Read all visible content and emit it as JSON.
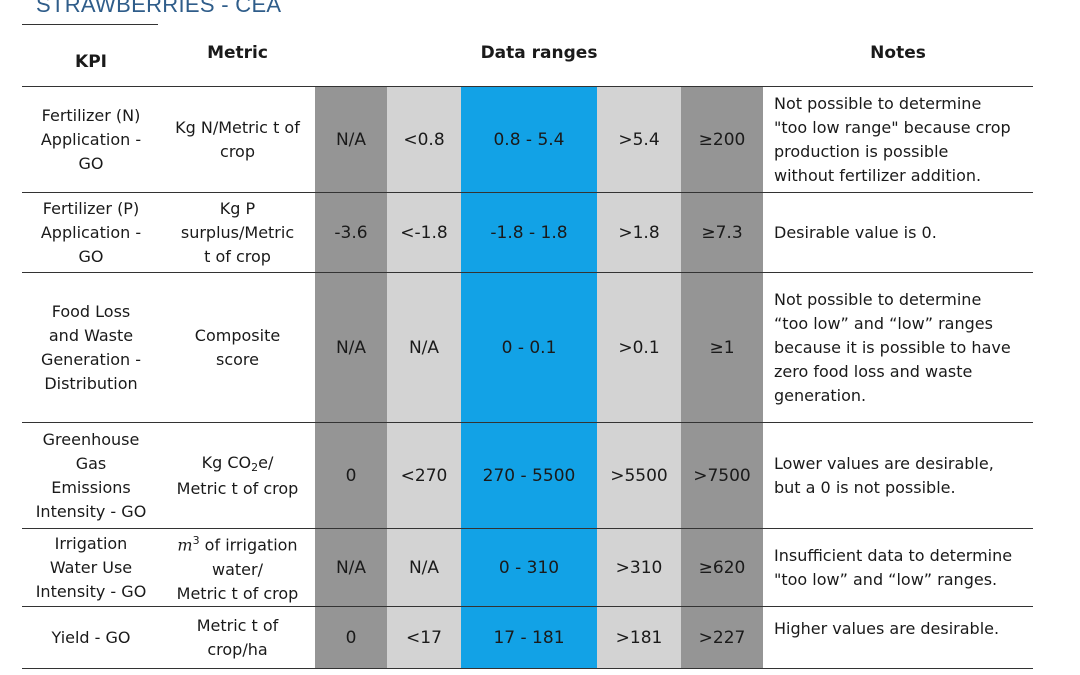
{
  "title": "STRAWBERRIES - CEA",
  "headers": {
    "kpi": "KPI",
    "metric": "Metric",
    "ranges": "Data ranges",
    "notes": "Notes"
  },
  "colors": {
    "too_low": "#959595",
    "low": "#d3d3d3",
    "desirable": "#12a2e6",
    "high": "#d3d3d3",
    "too_high": "#959595"
  },
  "rows": [
    {
      "kpi": [
        "Fertilizer (N)",
        "Application -",
        "GO"
      ],
      "metric": [
        "Kg N/Metric t of",
        "crop"
      ],
      "ranges": [
        "N/A",
        "<0.8",
        "0.8 - 5.4",
        ">5.4",
        "≥200"
      ],
      "notes": [
        "Not possible to determine",
        "\"too low range\" because crop",
        "production is possible",
        "without fertilizer addition."
      ]
    },
    {
      "kpi": [
        "Fertilizer (P)",
        "Application -",
        "GO"
      ],
      "metric": [
        "Kg P",
        "surplus/Metric",
        "t of crop"
      ],
      "ranges": [
        "-3.6",
        "<-1.8",
        "-1.8 - 1.8",
        ">1.8",
        "≥7.3"
      ],
      "notes": [
        "Desirable value is 0."
      ]
    },
    {
      "kpi": [
        "Food Loss",
        "and Waste",
        "Generation -",
        "Distribution"
      ],
      "metric": [
        "Composite",
        "score"
      ],
      "ranges": [
        "N/A",
        "N/A",
        "0 - 0.1",
        ">0.1",
        "≥1"
      ],
      "notes": [
        "Not possible to determine",
        "“too low” and “low” ranges",
        "because it is possible to have",
        "zero food loss and waste",
        "generation."
      ]
    },
    {
      "kpi": [
        "Greenhouse",
        "Gas",
        "Emissions",
        "Intensity - GO"
      ],
      "metric": [
        "Kg CO",
        "2",
        "e/",
        "Metric t of crop"
      ],
      "ranges": [
        "0",
        "<270",
        "270 - 5500",
        ">5500",
        ">7500"
      ],
      "notes": [
        "Lower values are desirable,",
        "but a 0 is not possible."
      ]
    },
    {
      "kpi": [
        "Irrigation",
        "Water Use",
        "Intensity - GO"
      ],
      "metric": [
        "m",
        "3",
        " of irrigation",
        "water/",
        "Metric t of crop"
      ],
      "ranges": [
        "N/A",
        "N/A",
        "0 - 310",
        ">310",
        "≥620"
      ],
      "notes": [
        "Insufficient data to determine",
        "\"too low” and “low” ranges."
      ]
    },
    {
      "kpi": [
        "Yield - GO"
      ],
      "metric": [
        "Metric t of",
        "crop/ha"
      ],
      "ranges": [
        "0",
        "<17",
        "17 - 181",
        ">181",
        ">227"
      ],
      "notes": [
        "Higher values are desirable."
      ]
    }
  ]
}
